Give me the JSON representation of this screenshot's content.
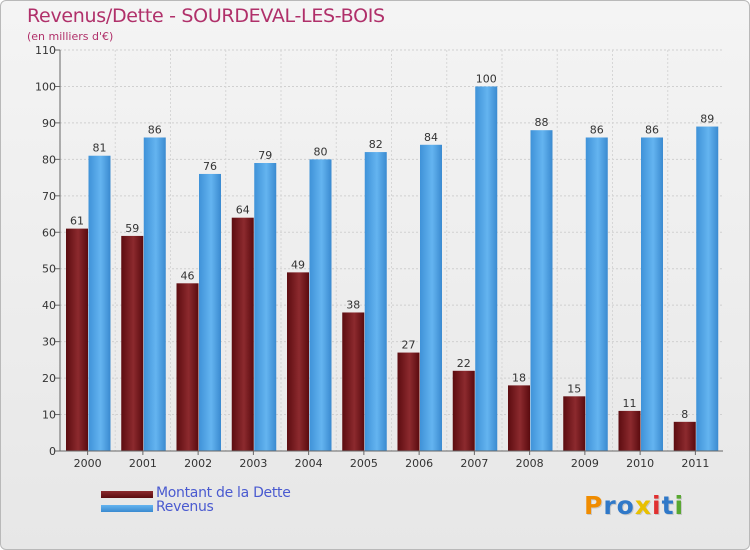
{
  "title": "Revenus/Dette - SOURDEVAL-LES-BOIS",
  "subtitle": "(en milliers d'€)",
  "logo": {
    "text": "Proxiti",
    "letters": [
      "P",
      "r",
      "o",
      "x",
      "i",
      "t",
      "i"
    ],
    "colors": [
      "#f08c00",
      "#2f78c8",
      "#2f78c8",
      "#e8c000",
      "#e03030",
      "#2f78c8",
      "#58a830"
    ]
  },
  "chart_data": {
    "type": "bar",
    "categories": [
      "2000",
      "2001",
      "2002",
      "2003",
      "2004",
      "2005",
      "2006",
      "2007",
      "2008",
      "2009",
      "2010",
      "2011"
    ],
    "series": [
      {
        "name": "Montant de la Dette",
        "color": "#7a1a1e",
        "values": [
          61,
          59,
          46,
          64,
          49,
          38,
          27,
          22,
          18,
          15,
          11,
          8
        ]
      },
      {
        "name": "Revenus",
        "color": "#4a9fe0",
        "values": [
          81,
          86,
          76,
          79,
          80,
          82,
          84,
          100,
          88,
          86,
          86,
          89
        ]
      }
    ],
    "yticks": [
      0,
      10,
      20,
      30,
      40,
      50,
      60,
      70,
      80,
      90,
      100,
      110
    ],
    "ylim": [
      0,
      110
    ],
    "grid": true,
    "legend": "bottom-left",
    "xlabel": "",
    "ylabel": ""
  }
}
